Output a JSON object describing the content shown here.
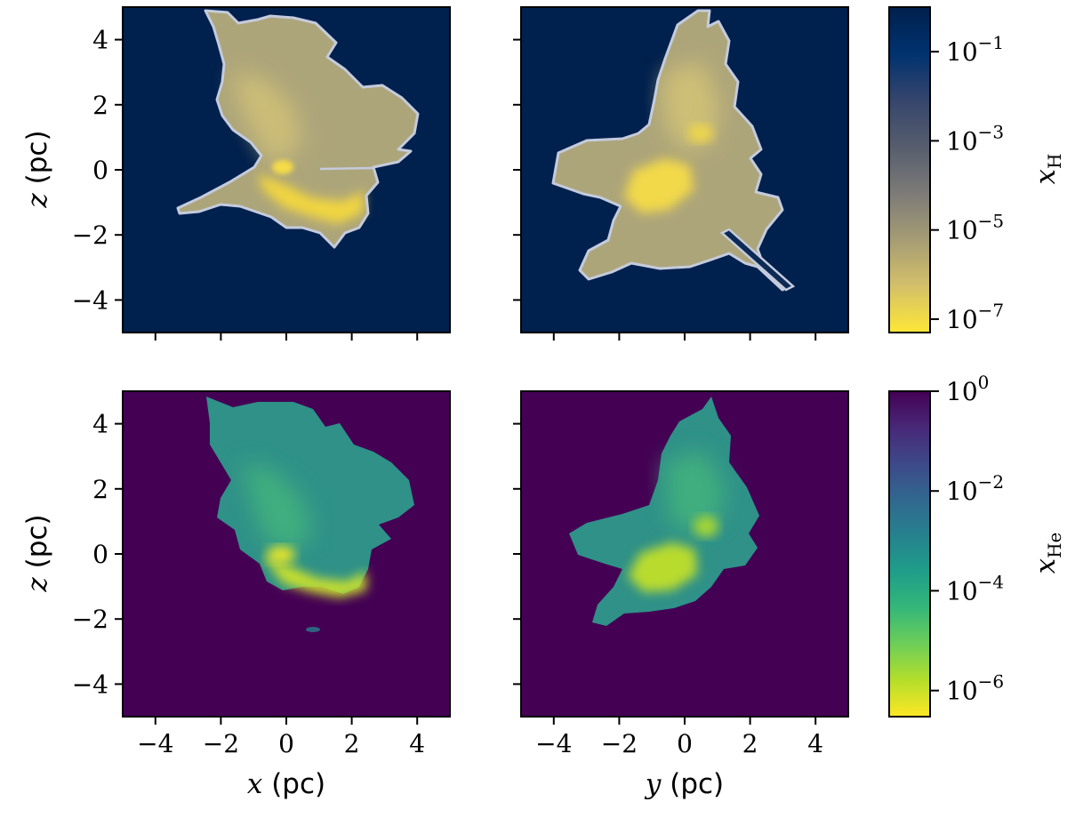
{
  "chart_data": [
    {
      "type": "heatmap",
      "panel": "top-left",
      "quantity": "x_H",
      "xlim": [
        -5,
        5
      ],
      "ylim": [
        -5,
        5
      ],
      "x_ticks": [
        "−4",
        "−2",
        "0",
        "2",
        "4"
      ],
      "y_ticks": [
        "4",
        "2",
        "0",
        "−2",
        "−4"
      ],
      "xlabel": "",
      "ylabel_var": "z",
      "ylabel_unit": "(pc)",
      "show_x_tick_labels": false,
      "show_y_tick_labels": true,
      "colormap": "cividis",
      "background_value": "~1e-1 (neutral)"
    },
    {
      "type": "heatmap",
      "panel": "top-right",
      "quantity": "x_H",
      "xlim": [
        -5,
        5
      ],
      "ylim": [
        -5,
        5
      ],
      "show_x_tick_labels": false,
      "show_y_tick_labels": false,
      "colormap": "cividis"
    },
    {
      "type": "heatmap",
      "panel": "bottom-left",
      "quantity": "x_He",
      "xlim": [
        -5,
        5
      ],
      "ylim": [
        -5,
        5
      ],
      "x_ticks": [
        "−4",
        "−2",
        "0",
        "2",
        "4"
      ],
      "y_ticks": [
        "4",
        "2",
        "0",
        "−2",
        "−4"
      ],
      "xlabel_var": "x",
      "xlabel_unit": "(pc)",
      "ylabel_var": "z",
      "ylabel_unit": "(pc)",
      "show_x_tick_labels": true,
      "show_y_tick_labels": true,
      "colormap": "viridis"
    },
    {
      "type": "heatmap",
      "panel": "bottom-right",
      "quantity": "x_He",
      "xlim": [
        -5,
        5
      ],
      "ylim": [
        -5,
        5
      ],
      "x_ticks": [
        "−4",
        "−2",
        "0",
        "2",
        "4"
      ],
      "xlabel_var": "y",
      "xlabel_unit": "(pc)",
      "show_x_tick_labels": true,
      "show_y_tick_labels": false,
      "colormap": "viridis"
    }
  ],
  "colorbars": {
    "top": {
      "label_main": "x",
      "label_sub": "H",
      "scale": "log",
      "range": [
        5e-08,
        1.0
      ],
      "ticks": [
        {
          "base": "10",
          "exp": "−1",
          "value": 0.1
        },
        {
          "base": "10",
          "exp": "−3",
          "value": 0.001
        },
        {
          "base": "10",
          "exp": "−5",
          "value": 1e-05
        },
        {
          "base": "10",
          "exp": "−7",
          "value": 1e-07
        }
      ],
      "colors": [
        "#fde737",
        "#d4c06a",
        "#a59c74",
        "#7c7b78",
        "#575d6d",
        "#35456c",
        "#00326f",
        "#00204d"
      ]
    },
    "bottom": {
      "label_main": "x",
      "label_sub": "He",
      "scale": "log",
      "range": [
        3e-07,
        1.0
      ],
      "ticks": [
        {
          "base": "10",
          "exp": "0",
          "value": 1.0
        },
        {
          "base": "10",
          "exp": "−2",
          "value": 0.01
        },
        {
          "base": "10",
          "exp": "−4",
          "value": 0.0001
        },
        {
          "base": "10",
          "exp": "−6",
          "value": 1e-06
        }
      ],
      "colors": [
        "#fde725",
        "#b5de2b",
        "#6ece58",
        "#35b779",
        "#1f9e89",
        "#26828e",
        "#31688e",
        "#3e4989",
        "#482878",
        "#440154"
      ]
    }
  },
  "colors": {
    "top_background": "#00204d",
    "bottom_background": "#440154",
    "top_region_fill": "#bdb27a",
    "top_region_core": "#f5d940",
    "top_contour": "#c6ccdd",
    "bottom_region_fill": "#2f9a8a",
    "bottom_region_mid": "#5cc36a",
    "bottom_region_core": "#d7e22a"
  }
}
